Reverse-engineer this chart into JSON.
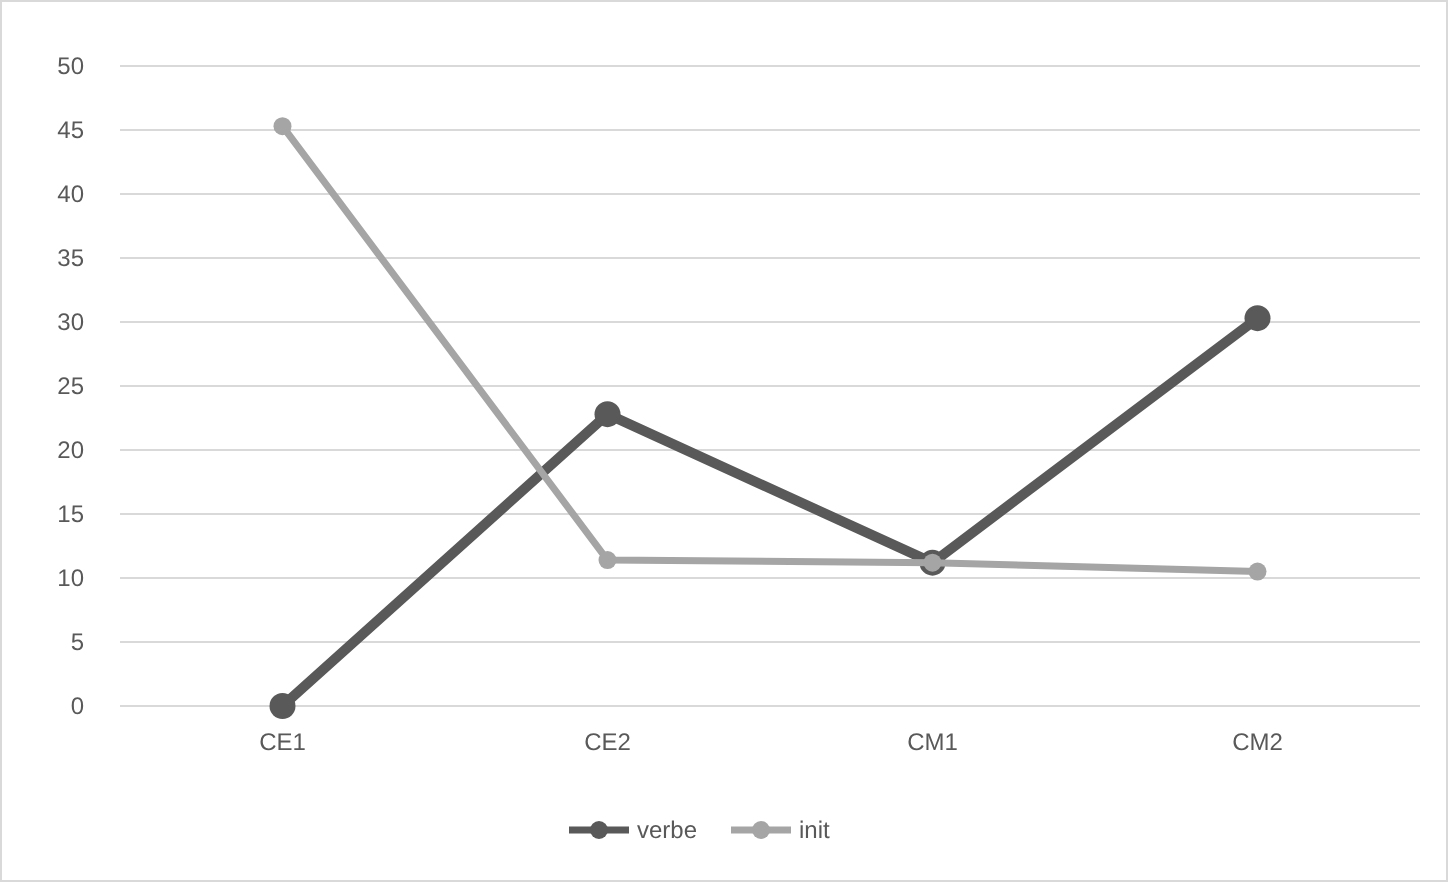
{
  "chart_data": {
    "type": "line",
    "categories": [
      "CE1",
      "CE2",
      "CM1",
      "CM2"
    ],
    "series": [
      {
        "name": "verbe",
        "color": "#595959",
        "values": [
          0,
          22.8,
          11.2,
          30.3
        ]
      },
      {
        "name": "init",
        "color": "#a5a5a5",
        "values": [
          45.3,
          11.4,
          11.2,
          10.5
        ]
      }
    ],
    "ylim": [
      0,
      50
    ],
    "yticks": [
      0,
      5,
      10,
      15,
      20,
      25,
      30,
      35,
      40,
      45,
      50
    ],
    "grid": "y",
    "legend": "bottom",
    "marker": "circle",
    "line_style": "solid"
  }
}
